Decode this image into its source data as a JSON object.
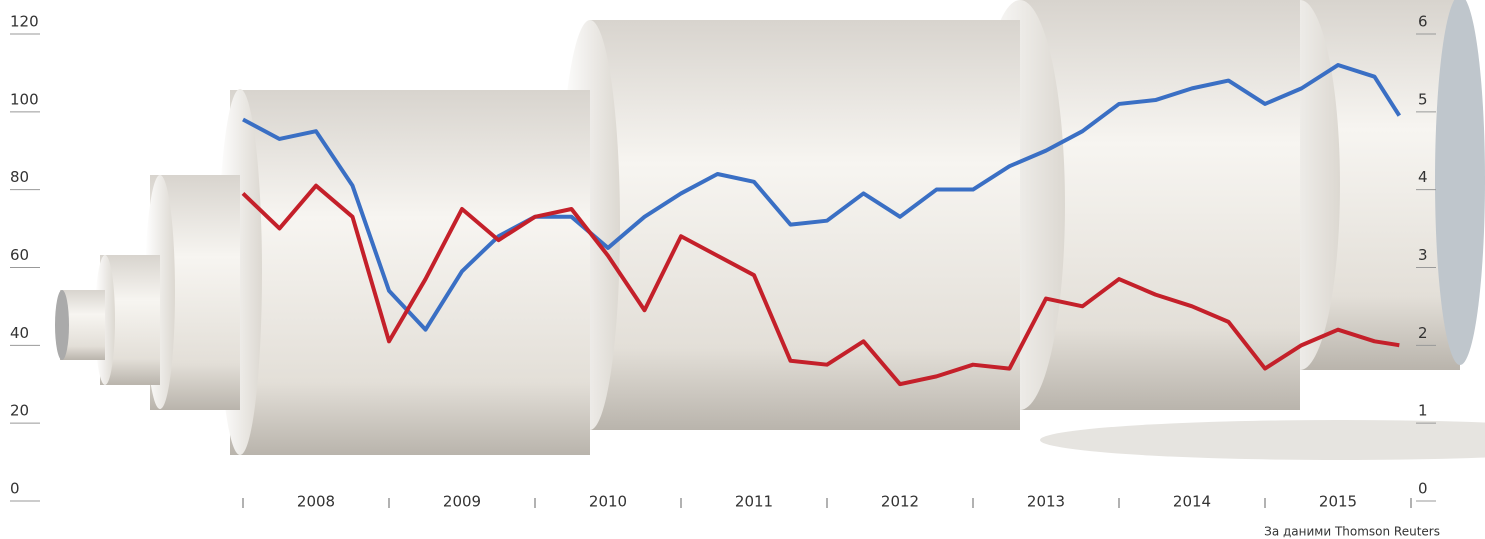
{
  "chart_data": {
    "type": "line",
    "source": "За даними Thomson Reuters",
    "x": [
      2008.0,
      2008.25,
      2008.5,
      2008.75,
      2009.0,
      2009.25,
      2009.5,
      2009.75,
      2010.0,
      2010.25,
      2010.5,
      2010.75,
      2011.0,
      2011.25,
      2011.5,
      2011.75,
      2012.0,
      2012.25,
      2012.5,
      2012.75,
      2013.0,
      2013.25,
      2013.5,
      2013.75,
      2014.0,
      2014.25,
      2014.5,
      2014.75,
      2015.0,
      2015.25,
      2015.5,
      2015.75,
      2015.92
    ],
    "series": [
      {
        "color": "#3a6fc4",
        "axis": "y",
        "values": [
          97,
          92,
          94,
          80,
          53,
          43,
          58,
          67,
          72,
          72,
          64,
          72,
          78,
          83,
          81,
          70,
          71,
          78,
          72,
          79,
          79,
          85,
          89,
          94,
          101,
          102,
          105,
          107,
          101,
          105,
          111,
          108,
          98
        ]
      },
      {
        "color": "#c4202a",
        "axis": "y2",
        "values": [
          3.9,
          3.45,
          4.0,
          3.6,
          2.0,
          2.8,
          3.7,
          3.3,
          3.6,
          3.7,
          3.1,
          2.4,
          3.35,
          3.1,
          2.85,
          1.75,
          1.7,
          2.0,
          1.45,
          1.55,
          1.7,
          1.65,
          2.55,
          2.45,
          2.8,
          2.6,
          2.45,
          2.25,
          1.65,
          1.95,
          2.15,
          2.0,
          1.95
        ]
      }
    ],
    "xlim": [
      2008,
      2016
    ],
    "xticks": [
      {
        "value": 2008.5,
        "label": "2008"
      },
      {
        "value": 2009.5,
        "label": "2009"
      },
      {
        "value": 2010.5,
        "label": "2010"
      },
      {
        "value": 2011.5,
        "label": "2011"
      },
      {
        "value": 2012.5,
        "label": "2012"
      },
      {
        "value": 2013.5,
        "label": "2013"
      },
      {
        "value": 2014.5,
        "label": "2014"
      },
      {
        "value": 2015.5,
        "label": "2015"
      }
    ],
    "ylim": [
      0,
      120
    ],
    "yticks": [
      0,
      20,
      40,
      60,
      80,
      100,
      120
    ],
    "y2lim": [
      0,
      6
    ],
    "y2ticks": [
      0,
      1,
      2,
      3,
      4,
      5,
      6
    ]
  }
}
